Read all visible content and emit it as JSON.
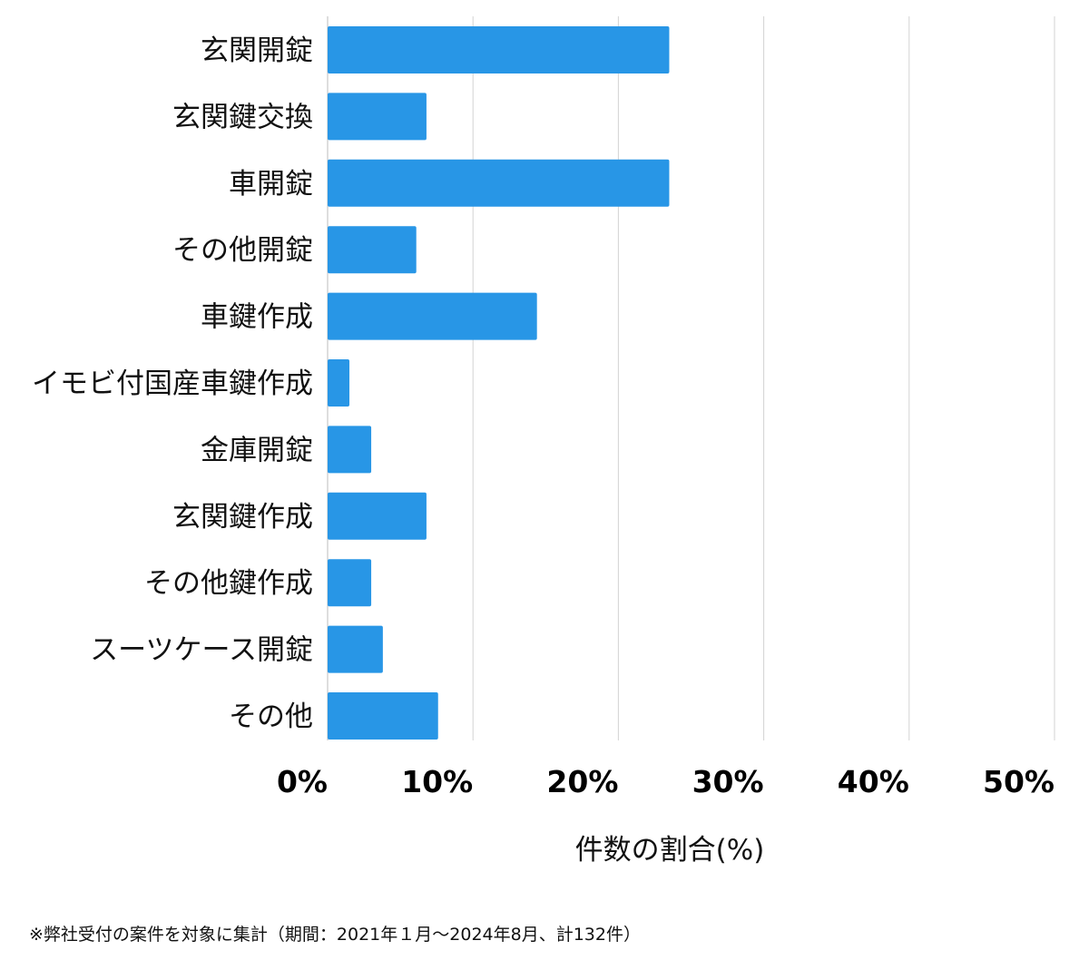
{
  "chart_data": {
    "type": "bar",
    "orientation": "horizontal",
    "categories": [
      "玄関開錠",
      "玄関鍵交換",
      "車開錠",
      "その他開錠",
      "車鍵作成",
      "イモビ付国産車鍵作成",
      "金庫開錠",
      "玄関鍵作成",
      "その他鍵作成",
      "スーツケース開錠",
      "その他"
    ],
    "values": [
      23.5,
      6.8,
      23.5,
      6.1,
      14.4,
      1.5,
      3.0,
      6.8,
      3.0,
      3.8,
      7.6
    ],
    "xlabel": "件数の割合(%)",
    "ylabel": "",
    "xlim": [
      0,
      50
    ],
    "xticks": [
      0,
      10,
      20,
      30,
      40,
      50
    ],
    "xtick_labels": [
      "0%",
      "10%",
      "20%",
      "30%",
      "40%",
      "50%"
    ],
    "grid": true,
    "bar_color": "#2896e6",
    "grid_color": "#d3d3d3"
  },
  "footnote": "※弊社受付の案件を対象に集計（期間：2021年１月〜2024年8月、計132件）"
}
